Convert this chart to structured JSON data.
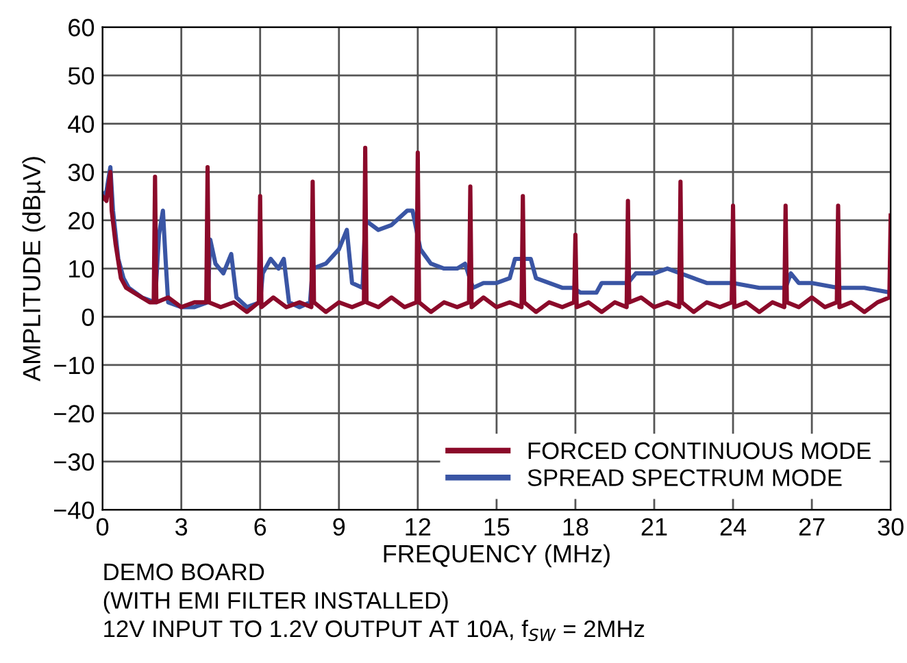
{
  "chart_data": {
    "type": "line",
    "xlabel": "FREQUENCY (MHz)",
    "ylabel": "AMPLITUDE (dBµV)",
    "xlim": [
      0,
      30
    ],
    "xticks": [
      0,
      3,
      6,
      9,
      12,
      15,
      18,
      21,
      24,
      27,
      30
    ],
    "ylim": [
      -40,
      60
    ],
    "yticks": [
      {
        "value": -40,
        "label": "−40"
      },
      {
        "value": -30,
        "label": "−30"
      },
      {
        "value": -20,
        "label": "−20"
      },
      {
        "value": -10,
        "label": "−10"
      },
      0,
      10,
      20,
      30,
      40,
      50,
      60
    ],
    "grid": true,
    "legend": "bottom right",
    "line_style": "solid",
    "marker": "none",
    "series": [
      {
        "name": "SPREAD SPECTRUM MODE",
        "color": "#3a55a4",
        "x": [
          0,
          0.15,
          0.3,
          0.4,
          0.6,
          0.8,
          1.0,
          1.5,
          2.0,
          2.15,
          2.3,
          2.4,
          2.5,
          3.0,
          3.5,
          4.0,
          4.1,
          4.3,
          4.6,
          4.9,
          5.1,
          5.5,
          6.0,
          6.1,
          6.4,
          6.7,
          6.9,
          7.1,
          7.5,
          7.9,
          8.0,
          8.5,
          9.0,
          9.3,
          9.5,
          9.9,
          10.0,
          10.5,
          11.0,
          11.6,
          11.8,
          12.1,
          12.5,
          13.0,
          13.5,
          13.8,
          14.1,
          14.5,
          15.0,
          15.5,
          15.7,
          16.3,
          16.5,
          17.0,
          17.5,
          17.9,
          18.2,
          18.8,
          19.0,
          19.5,
          20.0,
          20.3,
          21.0,
          21.5,
          22.0,
          22.5,
          23.0,
          24.0,
          25.0,
          26.0,
          26.2,
          26.5,
          27.0,
          28.0,
          29.0,
          30.0
        ],
        "values": [
          25,
          26,
          31,
          22,
          12,
          8,
          6,
          4,
          3,
          17,
          22,
          12,
          3,
          2,
          2,
          3,
          16,
          11,
          9,
          13,
          4,
          2,
          3,
          9,
          12,
          10,
          12,
          3,
          2,
          3,
          10,
          11,
          14,
          18,
          7,
          6,
          20,
          18,
          19,
          22,
          22,
          14,
          11,
          10,
          10,
          11,
          6,
          7,
          7,
          8,
          12,
          12,
          8,
          7,
          6,
          6,
          5,
          5,
          7,
          7,
          7,
          9,
          9,
          10,
          9,
          8,
          7,
          7,
          6,
          6,
          9,
          7,
          7,
          6,
          6,
          5
        ]
      },
      {
        "name": "FORCED CONTINUOUS MODE",
        "color": "#8b0a2a",
        "x": [
          0,
          0.15,
          0.25,
          0.3,
          0.35,
          0.5,
          0.7,
          0.9,
          1.2,
          1.5,
          1.8,
          1.95,
          2,
          2.05,
          2.5,
          3,
          3.5,
          3.95,
          4,
          4.05,
          4.5,
          5,
          5.5,
          5.95,
          6,
          6.05,
          6.5,
          7,
          7.5,
          7.95,
          8,
          8.05,
          8.5,
          9,
          9.5,
          9.95,
          10,
          10.05,
          10.5,
          11,
          11.5,
          11.95,
          12,
          12.05,
          12.5,
          13,
          13.5,
          13.95,
          14,
          14.05,
          14.5,
          15,
          15.5,
          15.95,
          16,
          16.05,
          16.5,
          17,
          17.5,
          17.95,
          18,
          18.05,
          18.5,
          19,
          19.5,
          19.95,
          20,
          20.05,
          20.5,
          21,
          21.5,
          21.95,
          22,
          22.05,
          22.5,
          23,
          23.5,
          23.95,
          24,
          24.05,
          24.5,
          25,
          25.5,
          25.95,
          26,
          26.05,
          26.5,
          27,
          27.5,
          27.95,
          28,
          28.05,
          28.5,
          29,
          29.5,
          29.95,
          30
        ],
        "values": [
          25,
          24,
          28,
          30,
          22,
          15,
          8,
          6,
          5,
          4,
          3,
          3,
          29,
          3,
          4,
          2,
          3,
          3,
          31,
          3,
          2,
          3,
          1,
          3,
          25,
          2,
          4,
          2,
          3,
          2,
          28,
          3,
          1,
          3,
          2,
          3,
          35,
          3,
          2,
          4,
          2,
          3,
          34,
          3,
          1,
          3,
          2,
          3,
          27,
          2,
          4,
          2,
          3,
          2,
          25,
          3,
          1,
          3,
          2,
          3,
          17,
          2,
          3,
          1,
          3,
          2,
          24,
          3,
          4,
          2,
          3,
          2,
          28,
          3,
          1,
          3,
          2,
          3,
          23,
          2,
          3,
          1,
          3,
          2,
          23,
          3,
          2,
          4,
          2,
          3,
          23,
          2,
          3,
          1,
          3,
          4,
          21
        ]
      }
    ],
    "annotations": [
      "DEMO BOARD",
      "(WITH EMI FILTER INSTALLED)",
      "12V INPUT TO 1.2V OUTPUT AT 10A, f$_{SW}$ = 2MHz"
    ]
  }
}
